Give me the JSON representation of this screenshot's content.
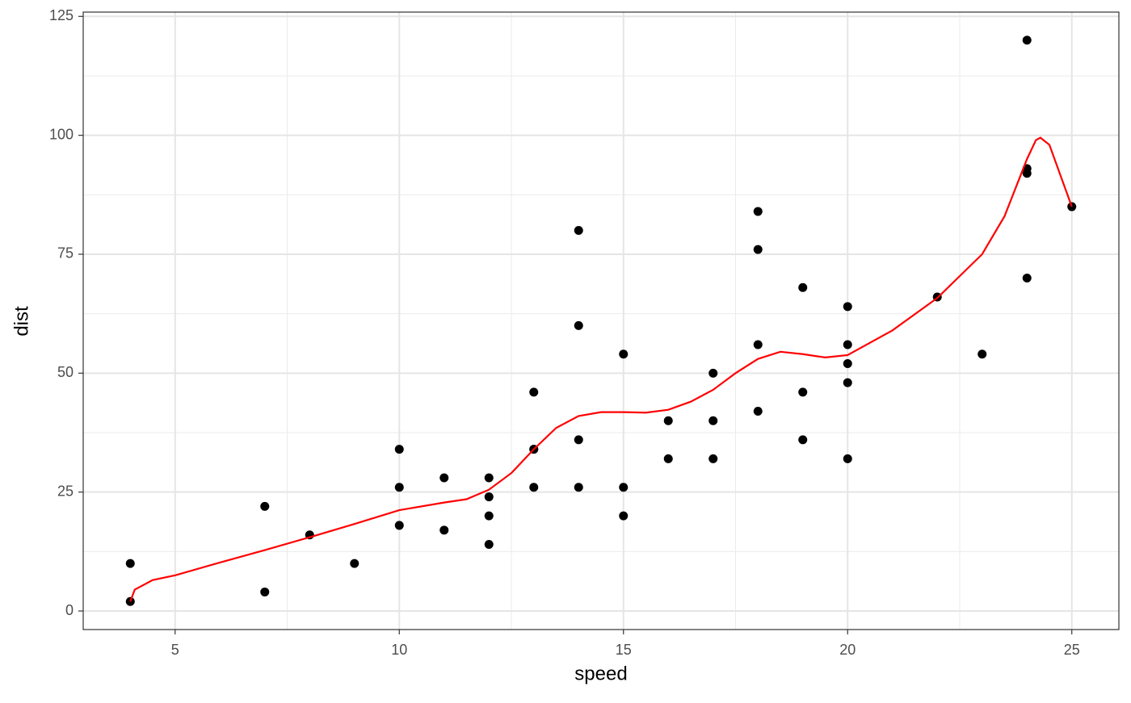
{
  "chart_data": {
    "type": "scatter",
    "x_label": "speed",
    "y_label": "dist",
    "series": [
      {
        "kind": "points",
        "color": "#000000",
        "x": [
          4,
          4,
          7,
          7,
          8,
          9,
          10,
          10,
          10,
          11,
          11,
          12,
          12,
          12,
          12,
          13,
          13,
          13,
          13,
          14,
          14,
          14,
          14,
          15,
          15,
          15,
          16,
          16,
          17,
          17,
          17,
          18,
          18,
          18,
          18,
          19,
          19,
          19,
          20,
          20,
          20,
          20,
          20,
          22,
          23,
          24,
          24,
          24,
          24,
          25
        ],
        "values": [
          2,
          10,
          4,
          22,
          16,
          10,
          18,
          26,
          34,
          17,
          28,
          14,
          20,
          24,
          28,
          26,
          34,
          34,
          46,
          26,
          36,
          60,
          80,
          20,
          26,
          54,
          32,
          40,
          32,
          40,
          50,
          42,
          56,
          76,
          84,
          36,
          46,
          68,
          32,
          48,
          52,
          56,
          64,
          66,
          54,
          70,
          92,
          93,
          120,
          85
        ]
      },
      {
        "kind": "line",
        "color": "#ff0000",
        "x": [
          4,
          4.1,
          4.5,
          5,
          6,
          7,
          8,
          9,
          10,
          11,
          11.5,
          12,
          12.5,
          13,
          13.5,
          14,
          14.5,
          15,
          15.5,
          16,
          16.5,
          17,
          17.5,
          18,
          18.5,
          19,
          19.5,
          20,
          21,
          22,
          23,
          23.5,
          24,
          24.2,
          24.3,
          24.5,
          25
        ],
        "values": [
          2,
          4.5,
          6.5,
          7.5,
          10.2,
          12.8,
          15.5,
          18.3,
          21.2,
          22.8,
          23.5,
          25.5,
          29,
          34,
          38.5,
          41,
          41.8,
          41.8,
          41.7,
          42.3,
          44,
          46.5,
          50,
          53,
          54.5,
          54,
          53.3,
          53.8,
          59,
          65.8,
          75,
          83,
          95,
          99,
          99.5,
          98,
          85
        ]
      }
    ],
    "xlim": [
      2.95,
      26.05
    ],
    "ylim": [
      -3.9,
      125.9
    ],
    "xticks": [
      5,
      10,
      15,
      20,
      25
    ],
    "yticks": [
      0,
      25,
      50,
      75,
      100,
      125
    ],
    "x_minor_ticks": [
      7.5,
      12.5,
      17.5,
      22.5
    ],
    "y_minor_ticks": [
      12.5,
      37.5,
      62.5,
      87.5,
      112.5
    ],
    "grid": true
  }
}
